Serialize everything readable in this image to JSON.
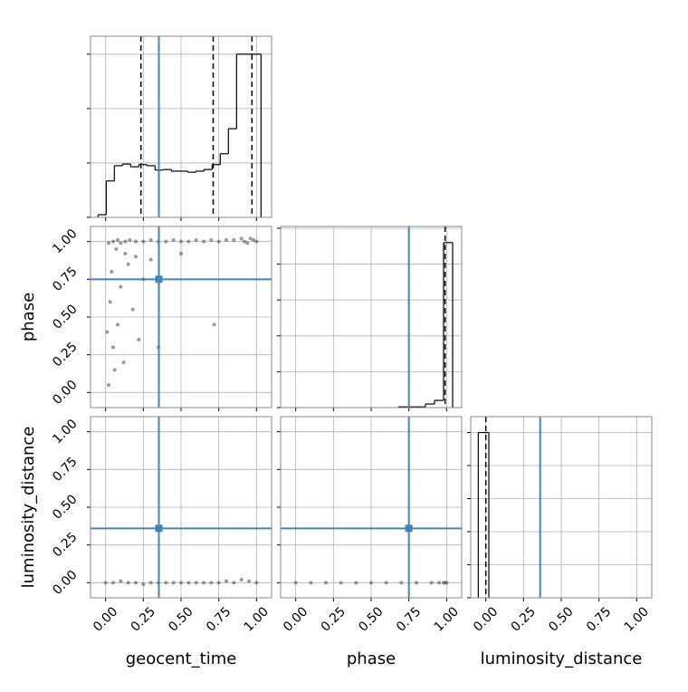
{
  "chart_data": {
    "type": "corner",
    "grid": true,
    "truth_color": "#4682b4",
    "hist_color": "#000000",
    "point_color": "#555555",
    "parameters": [
      {
        "label": "geocent_time",
        "lim": [
          -0.1,
          1.1
        ],
        "truth": 0.353,
        "ticks": [
          {
            "value": 0,
            "label": "0.00"
          },
          {
            "value": 0.25,
            "label": "0.25"
          },
          {
            "value": 0.5,
            "label": "0.50"
          },
          {
            "value": 0.75,
            "label": "0.75"
          },
          {
            "value": 1,
            "label": "1.00"
          }
        ]
      },
      {
        "label": "phase",
        "lim": [
          -0.1,
          1.1
        ],
        "truth": 0.75,
        "ticks": [
          {
            "value": 0,
            "label": "0.00"
          },
          {
            "value": 0.25,
            "label": "0.25"
          },
          {
            "value": 0.5,
            "label": "0.50"
          },
          {
            "value": 0.75,
            "label": "0.75"
          },
          {
            "value": 1,
            "label": "1.00"
          }
        ]
      },
      {
        "label": "luminosity_distance",
        "lim": [
          -0.1,
          1.1
        ],
        "truth": 0.36,
        "ticks": [
          {
            "value": 0,
            "label": "0.00"
          },
          {
            "value": 0.25,
            "label": "0.25"
          },
          {
            "value": 0.5,
            "label": "0.50"
          },
          {
            "value": 0.75,
            "label": "0.75"
          },
          {
            "value": 1,
            "label": "1.00"
          }
        ]
      }
    ],
    "histograms": [
      {
        "bins": [
          -0.05,
          0.004,
          0.058,
          0.112,
          0.166,
          0.22,
          0.274,
          0.328,
          0.382,
          0.436,
          0.49,
          0.544,
          0.598,
          0.652,
          0.706,
          0.76,
          0.814,
          0.868,
          0.922,
          0.976,
          1.03
        ],
        "values": [
          0.05,
          0.67,
          0.95,
          0.98,
          0.93,
          0.97,
          0.95,
          0.87,
          0.88,
          0.85,
          0.85,
          0.83,
          0.85,
          0.88,
          0.97,
          1.17,
          1.63,
          3.0,
          3.0,
          3.0
        ],
        "ylim": [
          0,
          3.33
        ],
        "yticks": [
          0,
          1,
          2,
          3
        ],
        "quantiles": [
          0.234,
          0.713,
          0.97
        ]
      },
      {
        "bins": [
          0.68,
          0.86,
          0.92,
          0.98,
          1.04
        ],
        "values": [
          0.02,
          0.1,
          0.2,
          4.6
        ],
        "ylim": [
          0,
          5.05
        ],
        "yticks": [
          0,
          1,
          2,
          3,
          4,
          5
        ],
        "quantiles": [
          0.99
        ]
      },
      {
        "bins": [
          -0.05,
          0.02
        ],
        "values": [
          5
        ],
        "ylim": [
          0,
          5.48
        ],
        "yticks": [
          0,
          1,
          2,
          3,
          4,
          5
        ],
        "quantiles": [
          0.0
        ]
      }
    ],
    "pairs": [
      {
        "x": [
          0.02,
          0.05,
          0.08,
          0.1,
          0.13,
          0.16,
          0.2,
          0.25,
          0.3,
          0.35,
          0.4,
          0.45,
          0.5,
          0.55,
          0.6,
          0.65,
          0.7,
          0.75,
          0.8,
          0.85,
          0.9,
          0.92,
          0.94,
          0.96,
          0.98,
          1.0,
          0.03,
          0.05,
          0.02,
          0.08,
          0.06,
          0.1,
          0.12,
          0.15,
          0.18,
          0.2,
          0.22,
          0.04,
          0.25,
          0.3,
          0.35,
          0.72,
          0.5,
          0.07,
          0.13,
          0.01
        ],
        "y": [
          0.99,
          1.0,
          1.01,
          0.99,
          1.0,
          1.01,
          1.0,
          1.0,
          1.01,
          1.0,
          1.0,
          1.01,
          1.0,
          1.0,
          1.01,
          1.0,
          1.01,
          1.0,
          1.01,
          1.01,
          1.02,
          1.0,
          0.99,
          1.02,
          1.01,
          1.0,
          0.6,
          0.3,
          0.05,
          0.45,
          0.15,
          0.7,
          0.2,
          0.85,
          0.55,
          0.9,
          0.35,
          0.8,
          0.75,
          0.88,
          0.3,
          0.45,
          0.92,
          0.95,
          0.92,
          0.4
        ]
      },
      {
        "x": [
          0.0,
          0.05,
          0.1,
          0.15,
          0.2,
          0.25,
          0.3,
          0.35,
          0.4,
          0.45,
          0.5,
          0.55,
          0.6,
          0.65,
          0.7,
          0.75,
          0.8,
          0.85,
          0.9,
          0.95,
          1.0
        ],
        "y": [
          0.0,
          0.0,
          0.01,
          0.0,
          0.0,
          -0.01,
          0.0,
          0.0,
          0.0,
          0.0,
          0.0,
          0.0,
          0.0,
          0.0,
          0.0,
          0.0,
          0.01,
          0.0,
          0.02,
          0.01,
          0.0
        ]
      },
      {
        "x": [
          0.0,
          0.1,
          0.2,
          0.3,
          0.4,
          0.5,
          0.6,
          0.7,
          0.8,
          0.9,
          0.95,
          0.98,
          0.99,
          1.0
        ],
        "y": [
          0.0,
          0.0,
          0.0,
          0.0,
          0.0,
          0.0,
          0.0,
          0.0,
          0.0,
          0.0,
          0.0,
          0.0,
          0.0,
          0.0
        ]
      }
    ]
  }
}
